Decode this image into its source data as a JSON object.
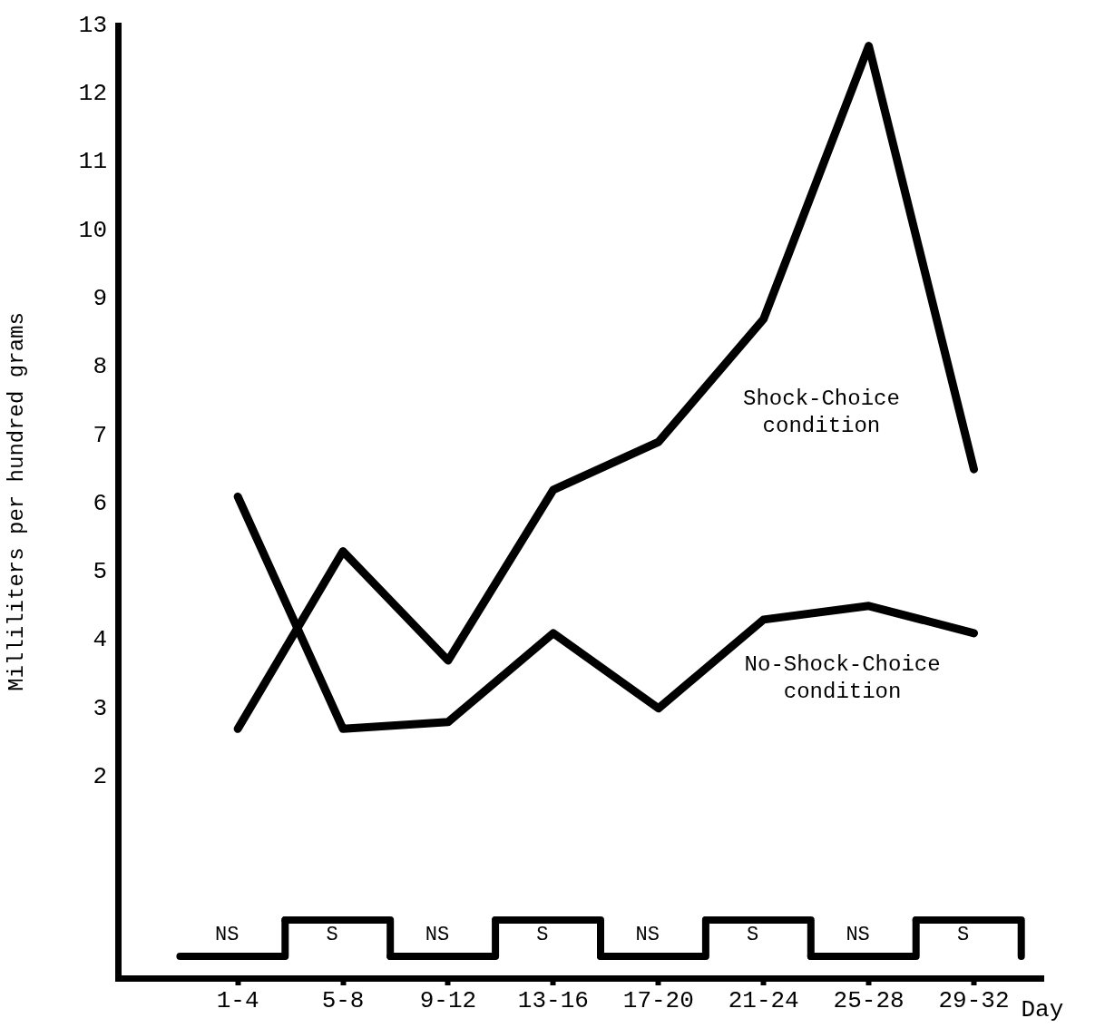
{
  "chart_data": {
    "type": "line",
    "xlabel": "Day",
    "ylabel": "Milliliters per hundred grams",
    "categories": [
      "1-4",
      "5-8",
      "9-12",
      "13-16",
      "17-20",
      "21-24",
      "25-28",
      "29-32"
    ],
    "series": [
      {
        "name": "Shock-Choice condition",
        "color": "#000000",
        "values": [
          2.7,
          5.3,
          3.7,
          6.2,
          6.9,
          8.7,
          12.7,
          6.5
        ]
      },
      {
        "name": "No-Shock-Choice condition",
        "color": "#000000",
        "values": [
          6.1,
          2.7,
          2.8,
          4.1,
          3.0,
          4.3,
          4.5,
          4.1
        ]
      }
    ],
    "ylim": [
      -0.95,
      13
    ],
    "yticks": [
      2,
      3,
      4,
      5,
      6,
      7,
      8,
      9,
      10,
      11,
      12,
      13
    ],
    "grid": false,
    "legend": false,
    "marker": "none",
    "line_style": "solid",
    "annotations": [
      "NS",
      "S",
      "NS",
      "S",
      "NS",
      "S",
      "NS",
      "S"
    ]
  }
}
